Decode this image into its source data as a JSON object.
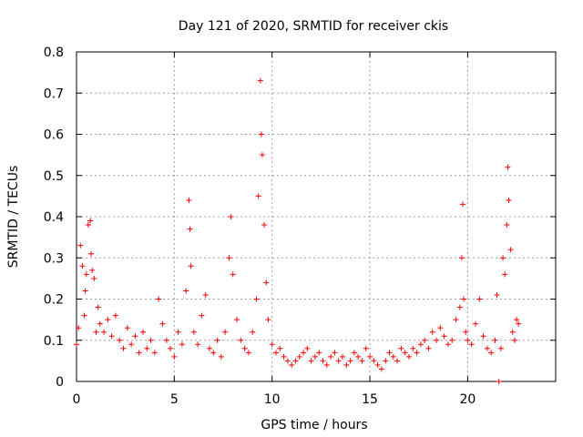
{
  "chart_data": {
    "type": "scatter",
    "title": "Day 121 of 2020, SRMTID for receiver ckis",
    "xlabel": "GPS time / hours",
    "ylabel": "SRMTID / TECUs",
    "xlim": [
      0,
      24.5
    ],
    "ylim": [
      0,
      0.8
    ],
    "xticks": [
      0,
      5,
      10,
      15,
      20
    ],
    "yticks": [
      0,
      0.1,
      0.2,
      0.3,
      0.4,
      0.5,
      0.6,
      0.7,
      0.8
    ],
    "xtick_labels": [
      "0",
      "5",
      "10",
      "15",
      "20"
    ],
    "ytick_labels": [
      "0",
      "0.1",
      "0.2",
      "0.3",
      "0.4",
      "0.5",
      "0.6",
      "0.7",
      "0.8"
    ],
    "grid": true,
    "marker": "+",
    "color": "#ff0000",
    "series": [
      {
        "name": "SRMTID",
        "x": [
          0.0,
          0.1,
          0.2,
          0.3,
          0.4,
          0.45,
          0.5,
          0.6,
          0.7,
          0.75,
          0.8,
          0.9,
          1.0,
          1.1,
          1.2,
          1.4,
          1.6,
          1.8,
          2.0,
          2.2,
          2.4,
          2.6,
          2.8,
          3.0,
          3.2,
          3.4,
          3.6,
          3.8,
          4.0,
          4.2,
          4.4,
          4.6,
          4.8,
          5.0,
          5.2,
          5.4,
          5.6,
          5.75,
          5.8,
          5.85,
          6.0,
          6.2,
          6.4,
          6.6,
          6.8,
          7.0,
          7.2,
          7.4,
          7.6,
          7.8,
          7.9,
          8.0,
          8.2,
          8.4,
          8.6,
          8.8,
          9.0,
          9.2,
          9.3,
          9.4,
          9.45,
          9.5,
          9.6,
          9.7,
          9.8,
          10.0,
          10.2,
          10.4,
          10.6,
          10.8,
          11.0,
          11.2,
          11.4,
          11.6,
          11.8,
          12.0,
          12.2,
          12.4,
          12.6,
          12.8,
          13.0,
          13.2,
          13.4,
          13.6,
          13.8,
          14.0,
          14.2,
          14.4,
          14.6,
          14.8,
          15.0,
          15.2,
          15.4,
          15.6,
          15.8,
          16.0,
          16.2,
          16.4,
          16.6,
          16.8,
          17.0,
          17.2,
          17.4,
          17.6,
          17.8,
          18.0,
          18.2,
          18.4,
          18.6,
          18.8,
          19.0,
          19.2,
          19.4,
          19.6,
          19.7,
          19.75,
          19.8,
          19.9,
          20.0,
          20.2,
          20.4,
          20.6,
          20.8,
          21.0,
          21.2,
          21.4,
          21.5,
          21.6,
          21.7,
          21.8,
          21.9,
          22.0,
          22.05,
          22.1,
          22.2,
          22.3,
          22.4,
          22.5,
          22.6
        ],
        "y": [
          0.09,
          0.13,
          0.33,
          0.28,
          0.16,
          0.22,
          0.26,
          0.38,
          0.39,
          0.31,
          0.27,
          0.25,
          0.12,
          0.18,
          0.14,
          0.12,
          0.15,
          0.11,
          0.16,
          0.1,
          0.08,
          0.13,
          0.09,
          0.11,
          0.07,
          0.12,
          0.08,
          0.1,
          0.07,
          0.2,
          0.14,
          0.1,
          0.08,
          0.06,
          0.12,
          0.09,
          0.22,
          0.44,
          0.37,
          0.28,
          0.12,
          0.09,
          0.16,
          0.21,
          0.08,
          0.07,
          0.1,
          0.06,
          0.12,
          0.3,
          0.4,
          0.26,
          0.15,
          0.1,
          0.08,
          0.07,
          0.12,
          0.2,
          0.45,
          0.73,
          0.6,
          0.55,
          0.38,
          0.24,
          0.15,
          0.09,
          0.07,
          0.08,
          0.06,
          0.05,
          0.04,
          0.05,
          0.06,
          0.07,
          0.08,
          0.05,
          0.06,
          0.07,
          0.05,
          0.04,
          0.06,
          0.07,
          0.05,
          0.06,
          0.04,
          0.05,
          0.07,
          0.06,
          0.05,
          0.08,
          0.06,
          0.05,
          0.04,
          0.03,
          0.05,
          0.07,
          0.06,
          0.05,
          0.08,
          0.07,
          0.06,
          0.08,
          0.07,
          0.09,
          0.1,
          0.08,
          0.12,
          0.1,
          0.13,
          0.11,
          0.09,
          0.1,
          0.15,
          0.18,
          0.3,
          0.43,
          0.2,
          0.12,
          0.1,
          0.09,
          0.14,
          0.2,
          0.11,
          0.08,
          0.07,
          0.1,
          0.21,
          0.0,
          0.08,
          0.3,
          0.26,
          0.38,
          0.52,
          0.44,
          0.32,
          0.12,
          0.1,
          0.15,
          0.14
        ]
      }
    ]
  }
}
